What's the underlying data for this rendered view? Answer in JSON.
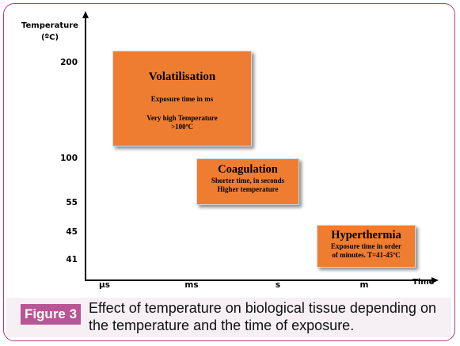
{
  "diagram": {
    "y_axis_label_line1": "Temperature",
    "y_axis_label_line2": "(ºC)",
    "x_axis_label": "Time",
    "y_ticks": [
      "200",
      "100",
      "55",
      "45",
      "41"
    ],
    "x_ticks": [
      "µs",
      "ms",
      "s",
      "m"
    ],
    "boxes": {
      "volatilisation": {
        "title": "Volatilisation",
        "line1": "Exposure time in ms",
        "line2": "Very high Temperature",
        "line3": ">100ºC"
      },
      "coagulation": {
        "title": "Coagulation",
        "line1": "Shorter time, in seconds",
        "line2": "Higher temperature"
      },
      "hyperthermia": {
        "title": "Hyperthermia",
        "line1": "Exposure time in order",
        "line2": "of minutes. T=41-45ºC"
      }
    },
    "box_color": "#ef7d31"
  },
  "caption": {
    "label": "Figure 3",
    "text": "Effect of temperature on biological tissue depending on the temperature and the time of exposure.",
    "label_color": "#b95596"
  },
  "frame_color": "#b23a8a"
}
